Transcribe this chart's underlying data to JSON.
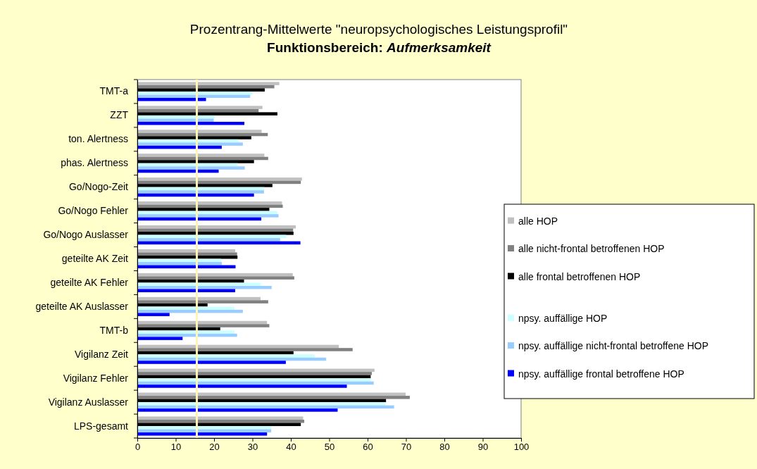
{
  "chart_data": {
    "type": "bar",
    "orientation": "horizontal",
    "title": "Prozentrang-Mittelwerte \"neuropsychologisches Leistungsprofil\"",
    "subtitle": "Funktionsbereich: Aufmerksamkeit",
    "categories": [
      "TMT-a",
      "ZZT",
      "ton. Alertness",
      "phas. Alertness",
      "Go/Nogo-Zeit",
      "Go/Nogo Fehler",
      "Go/Nogo Auslasser",
      "geteilte AK Zeit",
      "geteilte AK Fehler",
      "geteilte AK Auslasser",
      "TMT-b",
      "Vigilanz Zeit",
      "Vigilanz Fehler",
      "Vigilanz Auslasser",
      "LPS-gesamt"
    ],
    "series": [
      {
        "name": "alle HOP",
        "color": "#c0c0c0",
        "values": [
          37.0,
          32.6,
          32.4,
          33.1,
          42.9,
          37.7,
          41.3,
          25.5,
          40.5,
          32.1,
          33.8,
          52.5,
          61.8,
          69.9,
          43.2
        ]
      },
      {
        "name": "alle nicht-frontal betroffenen HOP",
        "color": "#808080",
        "values": [
          35.7,
          31.6,
          34.0,
          34.1,
          42.6,
          37.9,
          40.6,
          26.0,
          40.9,
          34.1,
          34.4,
          56.1,
          61.1,
          71.0,
          43.5
        ]
      },
      {
        "name": "alle frontal betroffenen HOP",
        "color": "#000000",
        "values": [
          33.2,
          36.5,
          29.7,
          30.4,
          35.2,
          34.4,
          40.7,
          26.1,
          27.8,
          18.3,
          21.6,
          40.7,
          60.8,
          64.8,
          42.6
        ]
      },
      {
        "name": "npsy. auffällige HOP",
        "color": "#ccffff",
        "values": [
          30.0,
          20.2,
          26.4,
          26.2,
          33.1,
          36.5,
          38.8,
          21.8,
          32.2,
          25.3,
          25.3,
          46.2,
          60.8,
          64.6,
          34.9
        ]
      },
      {
        "name": "npsy. auffällige nicht-frontal betroffene HOP",
        "color": "#99ccff",
        "values": [
          29.4,
          19.9,
          27.5,
          28.0,
          33.0,
          36.8,
          37.2,
          22.0,
          35.0,
          27.5,
          26.0,
          49.2,
          61.6,
          66.9,
          34.9
        ]
      },
      {
        "name": "npsy. auffällige frontal betroffene HOP",
        "color": "#0000ff",
        "values": [
          17.9,
          27.9,
          22.0,
          21.2,
          30.4,
          32.3,
          42.5,
          25.6,
          25.5,
          8.4,
          11.8,
          38.7,
          54.6,
          52.2,
          33.8
        ]
      }
    ],
    "xlim": [
      0,
      100
    ],
    "xticks": [
      0,
      10,
      20,
      30,
      40,
      50,
      60,
      70,
      80,
      90,
      100
    ],
    "ref_lines": [
      {
        "axis": "x",
        "value": 15.5,
        "color": "#fff5b8"
      }
    ],
    "grid": false,
    "legend": "right"
  }
}
